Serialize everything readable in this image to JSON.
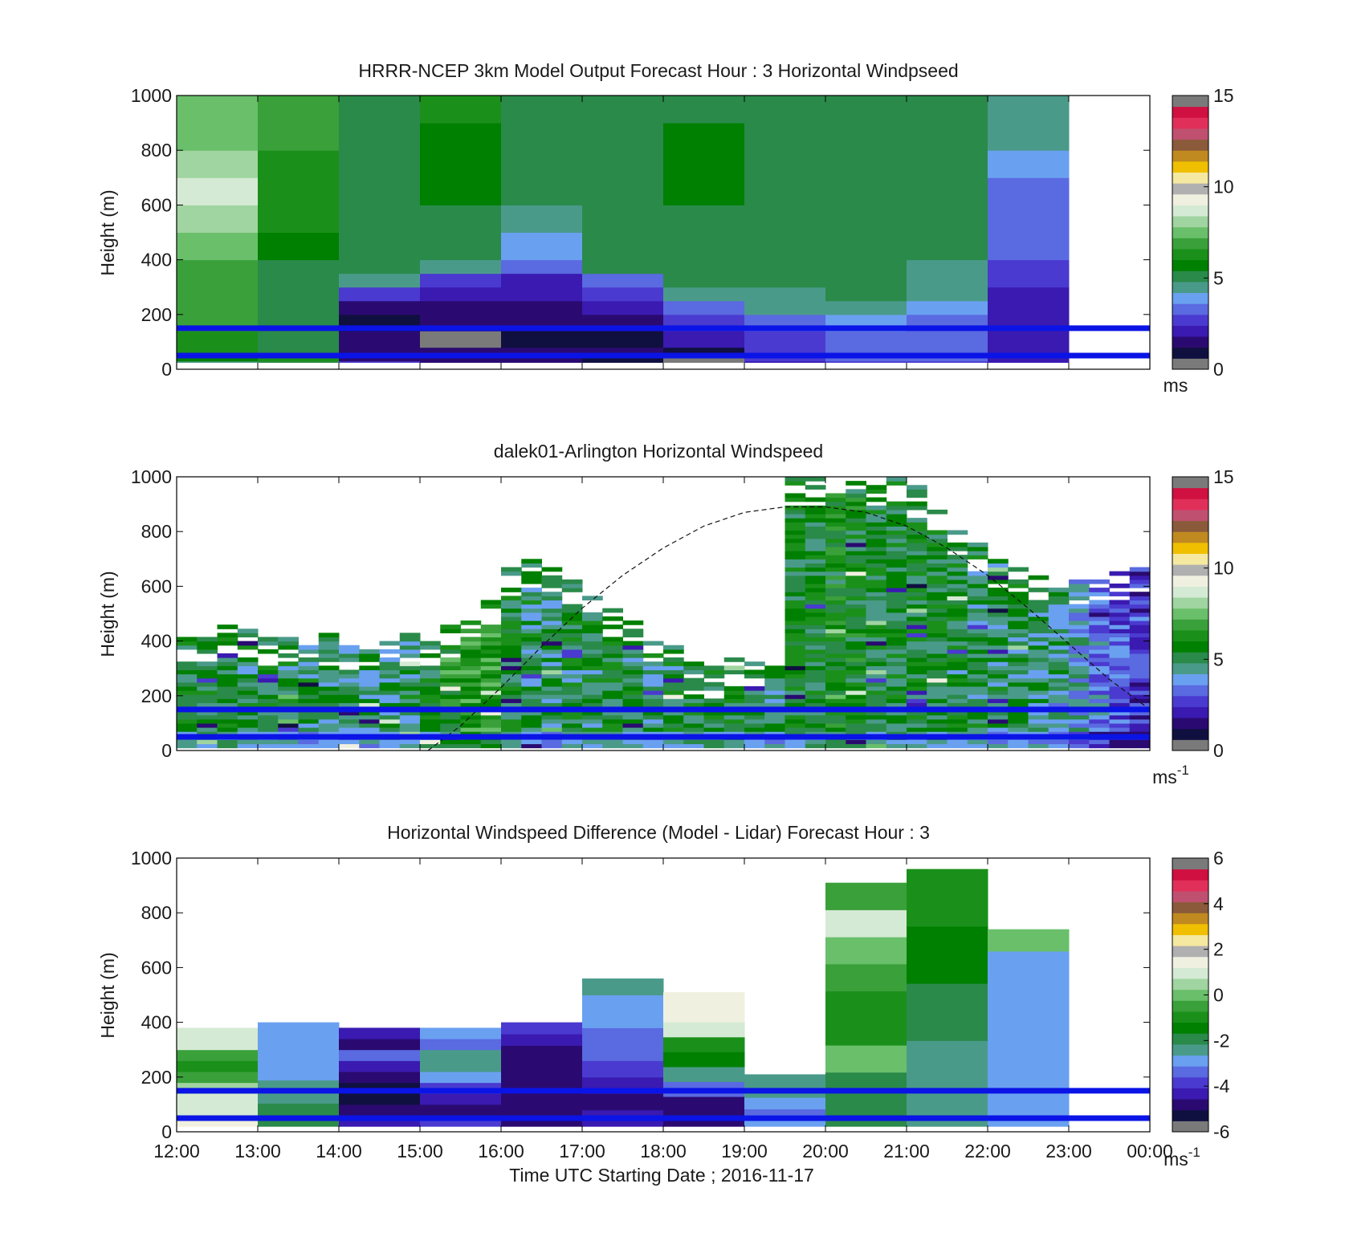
{
  "colormap": [
    "#7a7a7a",
    "#101040",
    "#2a0a70",
    "#3a1ab0",
    "#4a3ad0",
    "#5a6ae0",
    "#6aa0f0",
    "#4a9a8a",
    "#2a8a4a",
    "#008000",
    "#1a901a",
    "#3aa03a",
    "#6abf6a",
    "#a0d4a0",
    "#d4ead4",
    "#f0f0e0",
    "#b0b0b0",
    "#f5e8a0",
    "#f0c000",
    "#c08a20",
    "#8a5a3a",
    "#c05070",
    "#e0305a",
    "#d01040",
    "#7a7a7a"
  ],
  "colorbar_ticks": {
    "speed": [
      "0",
      "5",
      "10",
      "15"
    ],
    "diff": [
      "-6",
      "-4",
      "-2",
      "0",
      "2",
      "4",
      "6"
    ]
  },
  "chart_data": [
    {
      "type": "heatmap",
      "title": "HRRR-NCEP 3km Model Output   Forecast Hour : 3 Horizontal Windpseed",
      "ylabel": "Height (m)",
      "ylim": [
        0,
        1000
      ],
      "yticks": [
        "0",
        "200",
        "400",
        "600",
        "800",
        "1000"
      ],
      "x_domain": [
        "12:00",
        "00:00"
      ],
      "colorbar": {
        "range": [
          0,
          15
        ],
        "ticks": "speed",
        "unit": "ms",
        "unit_sup": ""
      },
      "columns_hours": [
        12,
        13,
        14,
        15,
        16,
        17,
        18,
        19,
        20,
        21,
        22
      ],
      "bins_m": [
        30,
        50,
        80,
        140,
        200,
        250,
        300,
        350,
        400,
        500,
        600,
        700,
        800,
        900,
        1000
      ],
      "values": [
        [
          4.5,
          5.5,
          6.0,
          6.5,
          7.0,
          6.8,
          6.6,
          6.7,
          7.0,
          7.5,
          7.8,
          8.8,
          7.8,
          7.2,
          7.3
        ],
        [
          4.8,
          6.0,
          5.3,
          5.0,
          5.0,
          5.0,
          5.0,
          5.0,
          5.3,
          5.8,
          6.0,
          6.2,
          6.5,
          6.8,
          6.6
        ],
        [
          2.5,
          1.5,
          1.3,
          1.2,
          1.1,
          1.2,
          2.5,
          4.6,
          5.0,
          5.0,
          5.0,
          5.0,
          5.1,
          5.2,
          5.2
        ],
        [
          1.5,
          1.4,
          1.3,
          0.2,
          1.3,
          1.5,
          2.0,
          2.6,
          4.2,
          5.1,
          5.2,
          5.5,
          5.8,
          5.8,
          6.0
        ],
        [
          1.7,
          1.5,
          1.3,
          1.0,
          1.5,
          1.3,
          1.8,
          2.2,
          3.2,
          4.0,
          4.5,
          5.0,
          5.0,
          5.0,
          5.0
        ],
        [
          1.0,
          1.0,
          1.2,
          1.0,
          1.2,
          2.0,
          2.8,
          3.0,
          5.1,
          5.2,
          5.0,
          5.3,
          5.3,
          5.3,
          5.3
        ],
        [
          0.4,
          0.4,
          1.0,
          2.2,
          2.8,
          3.0,
          4.5,
          4.8,
          5.2,
          5.0,
          5.3,
          5.8,
          5.8,
          5.5,
          5.2
        ],
        [
          2.0,
          2.5,
          2.8,
          2.8,
          3.2,
          4.4,
          4.6,
          4.8,
          5.0,
          5.0,
          5.0,
          5.0,
          5.0,
          5.1,
          5.0
        ],
        [
          2.5,
          3.2,
          3.3,
          3.3,
          4.0,
          4.5,
          4.8,
          4.8,
          5.0,
          5.0,
          5.0,
          5.0,
          4.9,
          5.0,
          5.0
        ],
        [
          2.8,
          3.0,
          3.2,
          3.3,
          3.3,
          3.8,
          4.2,
          4.5,
          4.6,
          5.0,
          5.0,
          5.0,
          5.0,
          5.0,
          5.0
        ],
        [
          2.0,
          2.0,
          2.0,
          2.0,
          2.0,
          2.0,
          2.3,
          2.5,
          2.8,
          3.2,
          3.5,
          3.3,
          4.0,
          4.2,
          4.6
        ]
      ],
      "overlay_lines_m": [
        150,
        50
      ]
    },
    {
      "type": "heatmap",
      "title": "dalek01-Arlington  Horizontal Windspeed",
      "ylabel": "Height (m)",
      "ylim": [
        0,
        1000
      ],
      "yticks": [
        "0",
        "200",
        "400",
        "600",
        "800",
        "1000"
      ],
      "x_domain": [
        "12:00",
        "00:00"
      ],
      "colorbar": {
        "range": [
          0,
          15
        ],
        "ticks": "speed",
        "unit": "ms",
        "unit_sup": "-1"
      },
      "column_width_hours": 0.25,
      "bin_height_m": 15,
      "profile_tops_m": [
        430,
        430,
        470,
        450,
        420,
        420,
        430,
        420,
        400,
        390,
        400,
        420,
        420,
        450,
        520,
        560,
        660,
        700,
        660,
        650,
        560,
        520,
        500,
        400,
        380,
        320,
        300,
        330,
        340,
        360,
        1000,
        1000,
        1000,
        1000,
        1000,
        1000,
        960,
        880,
        820,
        760,
        700,
        680,
        660,
        640,
        620,
        640,
        650,
        660
      ],
      "profile_base_speeds": [
        5.5,
        5.4,
        5.6,
        5.2,
        5.3,
        5.1,
        5.0,
        5.0,
        4.8,
        4.8,
        4.7,
        5.0,
        5.6,
        6.2,
        6.5,
        6.6,
        5.4,
        5.0,
        4.9,
        5.1,
        5.2,
        5.3,
        5.1,
        5.0,
        5.2,
        5.3,
        5.4,
        5.5,
        5.2,
        5.0,
        5.5,
        5.6,
        5.8,
        5.6,
        5.3,
        5.4,
        5.4,
        5.3,
        5.2,
        5.1,
        5.0,
        5.0,
        4.8,
        4.6,
        4.0,
        3.5,
        3.0,
        2.6
      ],
      "boundary_layer_curve": {
        "x_hours": [
          15.1,
          15.5,
          16.0,
          16.5,
          17.0,
          17.5,
          18.0,
          18.5,
          19.0,
          19.5,
          20.0,
          20.5,
          21.0,
          21.5,
          22.0,
          22.5,
          23.0,
          23.5,
          24.0
        ],
        "y_m": [
          0,
          90,
          230,
          380,
          520,
          640,
          740,
          820,
          870,
          890,
          890,
          870,
          820,
          740,
          640,
          520,
          390,
          260,
          150
        ]
      },
      "overlay_lines_m": [
        150,
        50
      ]
    },
    {
      "type": "heatmap",
      "title": "Horizontal Windspeed Difference (Model - Lidar) Forecast Hour : 3",
      "ylabel": "Height (m)",
      "xlabel": "Time UTC  Starting Date ; 2016-11-17",
      "ylim": [
        0,
        1000
      ],
      "yticks": [
        "0",
        "200",
        "400",
        "600",
        "800",
        "1000"
      ],
      "xticks": [
        "12:00",
        "13:00",
        "14:00",
        "15:00",
        "16:00",
        "17:00",
        "18:00",
        "19:00",
        "20:00",
        "21:00",
        "22:00",
        "23:00",
        "00:00"
      ],
      "colorbar": {
        "range": [
          -6,
          6
        ],
        "ticks": "diff",
        "unit": "ms",
        "unit_sup": "-1"
      },
      "columns_hours": [
        12,
        13,
        14,
        15,
        16,
        17,
        18,
        19,
        20,
        21,
        22
      ],
      "column_tops_m": [
        380,
        400,
        380,
        380,
        400,
        560,
        510,
        210,
        910,
        960,
        740
      ],
      "values_bottom_to_top": [
        [
          1.2,
          1.0,
          0.8,
          0.6,
          -0.3,
          -0.8,
          -0.5,
          0.8,
          1.0
        ],
        [
          -1.8,
          -2.0,
          -2.4,
          -2.6,
          -2.8,
          -3.0,
          -3.0,
          -3.0,
          -2.8
        ],
        [
          -4.5,
          -5.0,
          -5.4,
          -5.2,
          -4.8,
          -4.2,
          -3.6,
          -5.0,
          -4.4
        ],
        [
          -4.0,
          -4.8,
          -4.4,
          -3.8,
          -3.0,
          -2.6,
          -2.4,
          -3.2,
          -2.8
        ],
        [
          -4.6,
          -5.0,
          -5.0,
          -5.0,
          -4.8,
          -4.8,
          -4.6,
          -4.4,
          -4.0
        ],
        [
          -4.5,
          -4.8,
          -4.2,
          -3.8,
          -3.6,
          -3.2,
          -2.8,
          -3.0,
          -2.6
        ],
        [
          -5.0,
          -4.6,
          -3.5,
          -2.6,
          -1.5,
          -1.0,
          0.8,
          1.2,
          1.4
        ],
        [
          -3.0,
          -3.0,
          -3.2,
          -3.0,
          -2.8,
          -2.6,
          -2.6,
          -2.6,
          -2.6
        ],
        [
          -1.8,
          -1.8,
          0.0,
          -0.8,
          -1.0,
          -0.5,
          0.2,
          1.0,
          -0.6
        ],
        [
          -2.4,
          -2.4,
          -2.2,
          -2.0,
          -1.8,
          -1.6,
          -1.3,
          -1.0,
          -0.8
        ],
        [
          -3.0,
          -3.0,
          -3.0,
          -3.0,
          -2.9,
          -2.9,
          -2.8,
          -2.7,
          0.2
        ]
      ],
      "overlay_lines_m": [
        150,
        50
      ]
    }
  ]
}
